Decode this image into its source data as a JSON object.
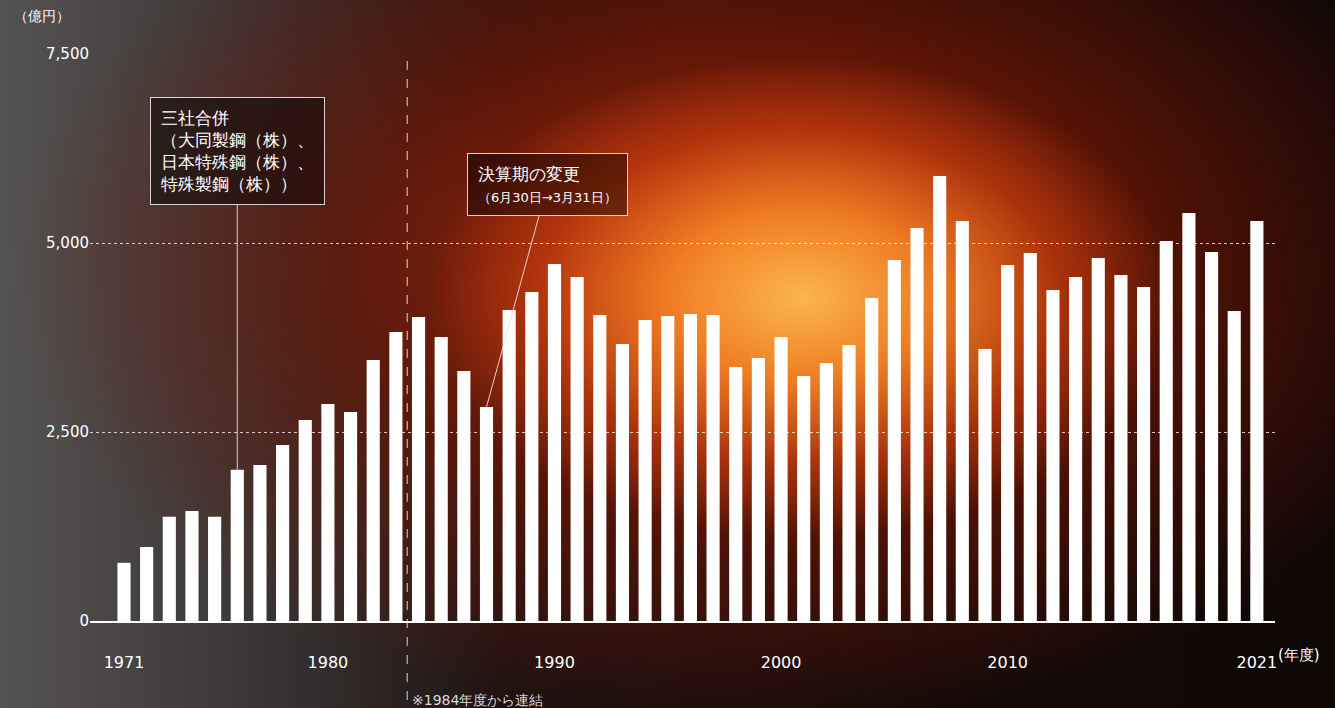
{
  "chart_data": {
    "type": "bar",
    "y_label": "（億円）",
    "x_label": "(年度)",
    "x": [
      1971,
      1972,
      1973,
      1974,
      1975,
      1976,
      1977,
      1978,
      1979,
      1980,
      1981,
      1982,
      1983,
      1984,
      1985,
      1986,
      1987,
      1988,
      1989,
      1990,
      1991,
      1992,
      1993,
      1994,
      1995,
      1996,
      1997,
      1998,
      1999,
      2000,
      2001,
      2002,
      2003,
      2004,
      2005,
      2006,
      2007,
      2008,
      2009,
      2010,
      2011,
      2012,
      2013,
      2014,
      2015,
      2016,
      2017,
      2018,
      2019,
      2020,
      2021
    ],
    "values": [
      770,
      980,
      1380,
      1455,
      1380,
      2000,
      2063,
      2328,
      2659,
      2870,
      2765,
      3452,
      3823,
      4021,
      3757,
      3307,
      2831,
      4114,
      4352,
      4722,
      4550,
      4048,
      3664,
      3981,
      4034,
      4061,
      4048,
      3360,
      3479,
      3757,
      3241,
      3413,
      3651,
      4272,
      4775,
      5198,
      5886,
      5291,
      3598,
      4709,
      4868,
      4378,
      4550,
      4802,
      4577,
      4418,
      5026,
      5397,
      4881,
      4101,
      5291
    ],
    "color": "#ffffff",
    "xlim": [
      1969.5,
      2021.8
    ],
    "xticks": [
      1971,
      1980,
      1990,
      2000,
      2010,
      2021
    ],
    "ylim": [
      0,
      7500
    ],
    "yticks": [
      0,
      {
        "value": 2500,
        "label": "2,500"
      },
      {
        "value": 5000,
        "label": "5,000"
      },
      {
        "value": 7500,
        "label": "7,500"
      }
    ],
    "grid": true,
    "annotations": [
      {
        "lines": [
          "三社合併",
          "（大同製鋼（株）、",
          "日本特殊鋼（株）、",
          "特殊製鋼（株））"
        ],
        "x": 1976
      },
      {
        "lines": [
          "決算期の変更",
          "（6月30日→3月31日）"
        ],
        "x": 1987
      },
      {
        "lines": [
          "※1984年度から連結"
        ],
        "x": 1983.5,
        "line_style": "dashed"
      }
    ]
  }
}
